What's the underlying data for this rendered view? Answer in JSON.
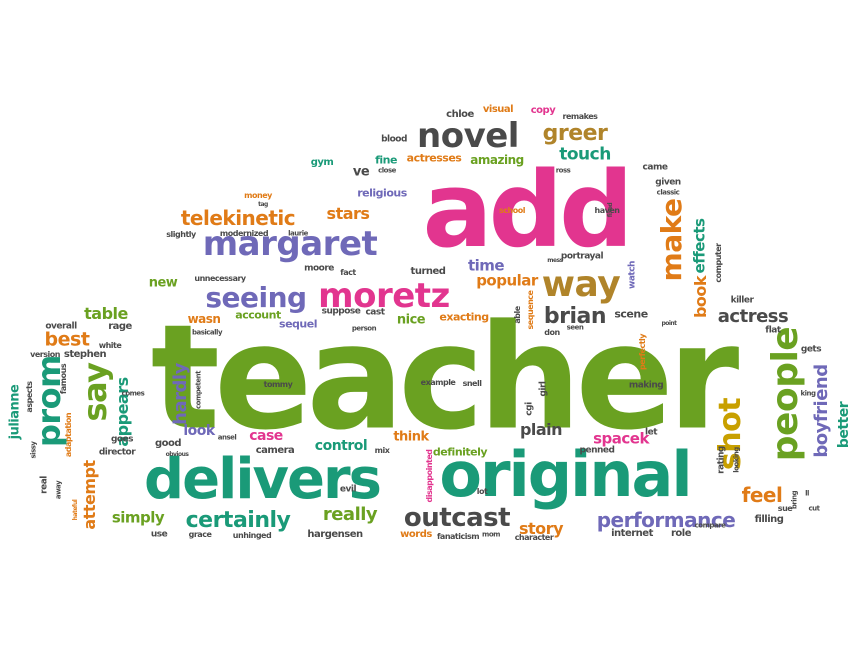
{
  "words": {
    "teacher": "teacher",
    "add": "add",
    "delivers": "delivers",
    "original": "original",
    "margaret": "margaret",
    "moretz": "moretz",
    "seeing": "seeing",
    "novel": "novel",
    "way": "way",
    "make": "make",
    "people": "people",
    "prom": "prom",
    "say": "say",
    "shot": "shot",
    "outcast": "outcast",
    "certainly": "certainly",
    "performance": "performance",
    "boyfriend": "boyfriend",
    "telekinetic": "telekinetic",
    "greer": "greer",
    "touch": "touch",
    "brian": "brian",
    "popular": "popular",
    "actress": "actress",
    "book": "book",
    "effects": "effects",
    "feel": "feel",
    "really": "really",
    "story": "story",
    "spacek": "spacek",
    "plain": "plain",
    "hardly": "hardly",
    "appears": "appears",
    "attempt": "attempt",
    "simply": "simply",
    "best": "best",
    "table": "table",
    "time": "time",
    "stars": "stars",
    "amazing": "amazing",
    "actresses": "actresses",
    "case": "case",
    "control": "control",
    "think": "think",
    "definitely": "definitely",
    "look": "look",
    "better": "better",
    "julianne": "julianne",
    "ve": "ve",
    "fine": "fine",
    "religious": "religious",
    "nice": "nice",
    "exacting": "exacting",
    "wasn": "wasn",
    "account": "account",
    "sequel": "sequel",
    "new": "new",
    "rage": "rage",
    "stephen": "stephen",
    "chloe": "chloe",
    "visual": "visual",
    "copy": "copy",
    "remakes": "remakes",
    "blood": "blood",
    "gym": "gym",
    "came": "came",
    "given": "given",
    "school": "school",
    "haven": "haven",
    "portrayal": "portrayal",
    "watch": "watch",
    "computer": "computer",
    "killer": "killer",
    "flat": "flat",
    "gets": "gets",
    "scene": "scene",
    "perfectly": "perfectly",
    "making": "making",
    "let": "let",
    "rating": "rating",
    "filling": "filling",
    "role": "role",
    "internet": "internet",
    "penned": "penned",
    "character": "character",
    "fanaticism": "fanaticism",
    "words": "words",
    "unhinged": "unhinged",
    "hargensen": "hargensen",
    "grace": "grace",
    "use": "use",
    "evil": "evil",
    "lot": "lot",
    "mix": "mix",
    "disappointed": "disappointed",
    "good": "good",
    "camera": "camera",
    "director": "director",
    "goes": "goes",
    "adaptation": "adaptation",
    "famous": "famous",
    "aspects": "aspects",
    "version": "version",
    "white": "white",
    "overall": "overall",
    "basically": "basically",
    "suppose": "suppose",
    "cast": "cast",
    "person": "person",
    "fact": "fact",
    "moore": "moore",
    "turned": "turned",
    "unnecessary": "unnecessary",
    "slightly": "slightly",
    "modernized": "modernized",
    "money": "money",
    "laurie": "laurie",
    "ross": "ross",
    "close": "close",
    "example": "example",
    "snell": "snell",
    "cgi": "cgi",
    "girl": "girl",
    "sequence": "sequence",
    "able": "able",
    "don": "don",
    "seen": "seen",
    "point": "point",
    "tommy": "tommy",
    "competent": "competent",
    "comes": "comes",
    "real": "real",
    "away": "away",
    "hateful": "hateful",
    "sissy": "sissy",
    "ansel": "ansel",
    "mom": "mom",
    "obvious": "obvious",
    "looking": "looking",
    "bring": "bring",
    "sue": "sue",
    "cut": "cut",
    "ll": "ll",
    "compare": "compare",
    "king": "king",
    "classic": "classic",
    "fixed": "fixed",
    "mess": "mess",
    "tag": "tag"
  }
}
